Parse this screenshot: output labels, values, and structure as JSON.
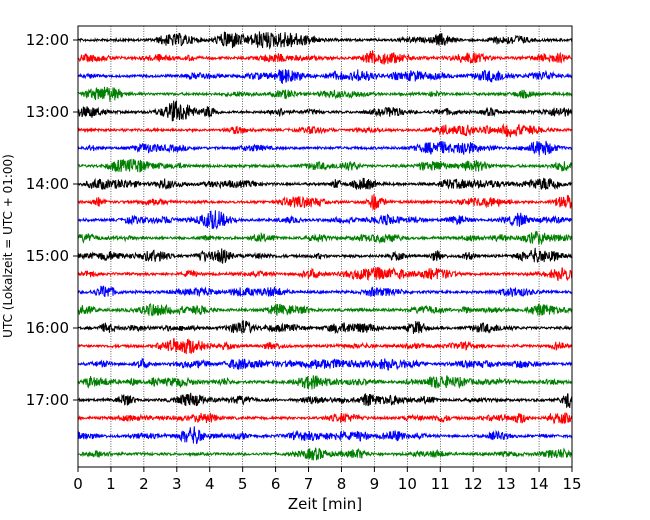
{
  "chart_data": {
    "type": "line",
    "title": "",
    "xlabel": "Zeit  [min]",
    "ylabel": "UTC (Lokalzeit = UTC + 01:00)",
    "xlim": [
      0,
      15
    ],
    "x_ticks": [
      "0",
      "1",
      "2",
      "3",
      "4",
      "5",
      "6",
      "7",
      "8",
      "9",
      "10",
      "11",
      "12",
      "13",
      "14",
      "15"
    ],
    "y_tick_labels": [
      "12:00",
      "13:00",
      "14:00",
      "15:00",
      "16:00",
      "17:00"
    ],
    "trace_start_times": [
      "12:00",
      "12:15",
      "12:30",
      "12:45",
      "13:00",
      "13:15",
      "13:30",
      "13:45",
      "14:00",
      "14:15",
      "14:30",
      "14:45",
      "15:00",
      "15:15",
      "15:30",
      "15:45",
      "16:00",
      "16:15",
      "16:30",
      "16:45",
      "17:00",
      "17:15",
      "17:30",
      "17:45"
    ],
    "minutes_per_line": 15,
    "trace_colors": [
      "#000000",
      "#ff0000",
      "#0000ff",
      "#008000"
    ],
    "grid": "vertical dotted lines at each minute",
    "legend": "none"
  }
}
